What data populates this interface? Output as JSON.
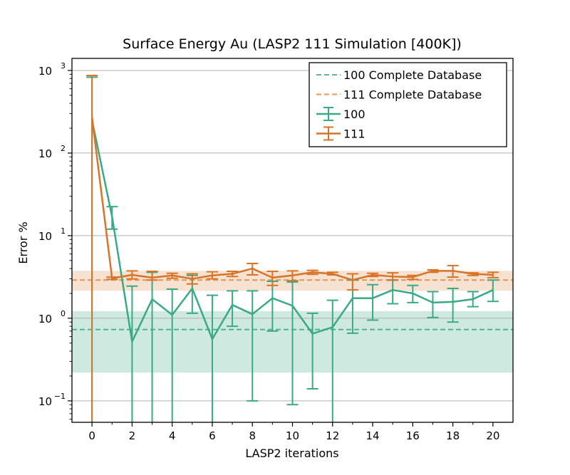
{
  "chart_data": {
    "type": "line",
    "title": "Surface Energy Au (LASP2 111 Simulation [400K])",
    "xlabel": "LASP2 iterations",
    "ylabel": "Error %",
    "xlim": [
      -1,
      21
    ],
    "ylim": [
      0.055,
      1400
    ],
    "yscale": "log",
    "grid": "y-major",
    "x_ticks": [
      0,
      2,
      4,
      6,
      8,
      10,
      12,
      14,
      16,
      18,
      20
    ],
    "x_tick_labels": [
      "0",
      "2",
      "4",
      "6",
      "8",
      "10",
      "12",
      "14",
      "16",
      "18",
      "20"
    ],
    "y_ticks": [
      0.1,
      1,
      10,
      100,
      1000
    ],
    "y_tick_labels": [
      {
        "base": "10",
        "exp": "−1"
      },
      {
        "base": "10",
        "exp": "0"
      },
      {
        "base": "10",
        "exp": "1"
      },
      {
        "base": "10",
        "exp": "2"
      },
      {
        "base": "10",
        "exp": "3"
      }
    ],
    "legend_position": "top-right",
    "reference_lines": [
      {
        "name": "100 Complete Database",
        "value": 0.73,
        "band": [
          0.22,
          1.22
        ],
        "color": "#3aaa85"
      },
      {
        "name": "111 Complete Database",
        "value": 2.9,
        "band": [
          2.15,
          3.75
        ],
        "color": "#e08843"
      }
    ],
    "series": [
      {
        "name": "100",
        "color": "#3aaa85",
        "x": [
          0,
          1,
          2,
          3,
          4,
          5,
          6,
          7,
          8,
          9,
          10,
          11,
          12,
          13,
          14,
          15,
          16,
          17,
          18,
          19,
          20
        ],
        "values": [
          250,
          17,
          0.52,
          1.7,
          1.1,
          2.3,
          0.56,
          1.45,
          1.12,
          1.75,
          1.42,
          0.65,
          0.78,
          1.75,
          1.75,
          2.2,
          2.0,
          1.55,
          1.58,
          1.7,
          2.2
        ],
        "lower": [
          0.0001,
          12,
          0.0001,
          0.0001,
          0.0001,
          1.15,
          0.0001,
          0.8,
          0.1,
          0.7,
          0.09,
          0.14,
          0.0001,
          0.66,
          0.95,
          1.5,
          1.55,
          1.02,
          0.9,
          1.38,
          1.6
        ],
        "upper": [
          830,
          22.5,
          2.45,
          3.6,
          2.25,
          3.3,
          1.9,
          2.15,
          2.15,
          2.8,
          2.75,
          1.15,
          1.65,
          2.9,
          2.55,
          2.9,
          2.5,
          2.1,
          2.3,
          2.1,
          2.9
        ]
      },
      {
        "name": "111",
        "color": "#d87428",
        "x": [
          0,
          1,
          2,
          3,
          4,
          5,
          6,
          7,
          8,
          9,
          10,
          11,
          12,
          13,
          14,
          15,
          16,
          17,
          18,
          19,
          20
        ],
        "values": [
          270,
          3.05,
          3.35,
          3.1,
          3.3,
          3.0,
          3.3,
          3.45,
          4.0,
          3.1,
          3.3,
          3.6,
          3.45,
          2.9,
          3.35,
          3.2,
          3.15,
          3.75,
          3.75,
          3.45,
          3.35
        ],
        "lower": [
          0.0001,
          2.95,
          3.0,
          2.9,
          3.05,
          2.6,
          3.0,
          3.2,
          3.35,
          2.5,
          2.85,
          3.4,
          3.35,
          2.2,
          3.2,
          2.9,
          2.95,
          3.6,
          3.15,
          3.3,
          3.1
        ],
        "upper": [
          870,
          3.15,
          3.75,
          3.7,
          3.5,
          3.45,
          3.65,
          3.7,
          4.6,
          3.7,
          3.75,
          3.8,
          3.6,
          3.45,
          3.5,
          3.55,
          3.3,
          3.85,
          4.35,
          3.55,
          3.6
        ]
      }
    ]
  }
}
